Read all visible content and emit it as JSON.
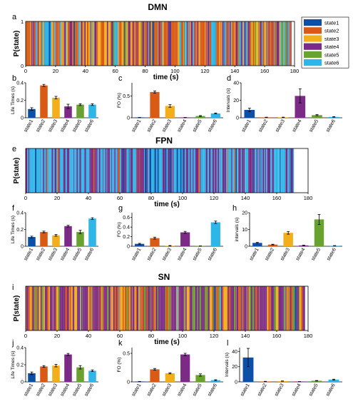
{
  "colors": {
    "state1": "#0b4fa6",
    "state2": "#d95a14",
    "state3": "#f3ae1b",
    "state4": "#7b2a86",
    "state5": "#6aa22f",
    "state6": "#2fb6e8"
  },
  "legend": {
    "placement": "top-right",
    "entries": [
      "state1",
      "state2",
      "state3",
      "state4",
      "state5",
      "state6"
    ]
  },
  "chart_data": [
    {
      "id": "a",
      "type": "timeline",
      "panel_label": "a",
      "title": "DMN",
      "xlabel": "time (s)",
      "ylabel": "P(state)",
      "xlim": [
        0,
        180
      ],
      "ylim": [
        0,
        1
      ],
      "x_ticks": [
        0,
        20,
        40,
        60,
        80,
        100,
        120,
        140,
        160,
        180
      ],
      "y_ticks": [
        0,
        1
      ],
      "data_end": 178,
      "weights": [
        0.02,
        0.36,
        0.22,
        0.2,
        0.08,
        0.12
      ],
      "segments": [
        {
          "start": 12.5,
          "end": 15.5,
          "state": "state6"
        },
        {
          "start": 15.5,
          "end": 16.5,
          "state": "state1"
        },
        {
          "start": 125.5,
          "end": 127.0,
          "state": "state6"
        }
      ]
    },
    {
      "id": "b",
      "type": "bar",
      "panel_label": "b",
      "ylabel": "Life Times (s)",
      "categories": [
        "state1",
        "state2",
        "state3",
        "state4",
        "state5",
        "state6"
      ],
      "values": [
        0.1,
        0.37,
        0.23,
        0.13,
        0.15,
        0.15
      ],
      "errors": [
        0.015,
        0.012,
        0.015,
        0.025,
        0.01,
        0.01
      ],
      "ylim": [
        0,
        0.4
      ],
      "y_ticks": [
        0,
        0.2,
        0.4
      ]
    },
    {
      "id": "c",
      "type": "bar",
      "panel_label": "c",
      "ylabel": "FO (%)",
      "categories": [
        "state1",
        "state2",
        "state3",
        "state4",
        "state5",
        "state6"
      ],
      "values": [
        0.005,
        0.59,
        0.27,
        0.005,
        0.04,
        0.1
      ],
      "errors": [
        0.003,
        0.025,
        0.03,
        0.003,
        0.01,
        0.01
      ],
      "ylim": [
        0,
        0.8
      ],
      "y_ticks": [
        0,
        0.5
      ]
    },
    {
      "id": "d",
      "type": "bar",
      "panel_label": "d",
      "ylabel": "Intervals (s)",
      "categories": [
        "state1",
        "state2",
        "state3",
        "state4",
        "state5",
        "state6"
      ],
      "values": [
        9,
        0.5,
        0.5,
        25,
        3,
        1
      ],
      "errors": [
        2,
        0.2,
        0.2,
        8,
        0.6,
        0.3
      ],
      "ylim": [
        0,
        40
      ],
      "y_ticks": [
        0,
        20,
        40
      ]
    },
    {
      "id": "e",
      "type": "timeline",
      "panel_label": "e",
      "title": "FPN",
      "xlabel": "time (s)",
      "ylabel": "P(state)",
      "xlim": [
        0,
        180
      ],
      "ylim": [
        0,
        1
      ],
      "x_ticks": [
        0,
        20,
        40,
        60,
        80,
        100,
        120,
        140,
        160,
        180
      ],
      "y_ticks": [],
      "data_end": 171,
      "weights": [
        0.05,
        0.05,
        0.0,
        0.35,
        0.0,
        0.55
      ],
      "segments": []
    },
    {
      "id": "f",
      "type": "bar",
      "panel_label": "f",
      "ylabel": "Life Times (s)",
      "categories": [
        "state1",
        "state2",
        "state3",
        "state4",
        "state5",
        "state6"
      ],
      "values": [
        0.11,
        0.17,
        0.13,
        0.24,
        0.17,
        0.33
      ],
      "errors": [
        0.01,
        0.01,
        0.01,
        0.01,
        0.02,
        0.01
      ],
      "ylim": [
        0,
        0.4
      ],
      "y_ticks": [
        0,
        0.2,
        0.4
      ]
    },
    {
      "id": "g",
      "type": "bar",
      "panel_label": "g",
      "ylabel": "FO (%)",
      "categories": [
        "state1",
        "state2",
        "state3",
        "state4",
        "state5",
        "state6"
      ],
      "values": [
        0.05,
        0.17,
        0.01,
        0.29,
        0.005,
        0.5
      ],
      "errors": [
        0.01,
        0.02,
        0.005,
        0.02,
        0.003,
        0.025
      ],
      "ylim": [
        0,
        0.7
      ],
      "y_ticks": [
        0,
        0.2,
        0.4,
        0.6
      ]
    },
    {
      "id": "h",
      "type": "bar",
      "panel_label": "h",
      "ylabel": "intervals (s)",
      "categories": [
        "state1",
        "state2",
        "state3",
        "state4",
        "state5",
        "state6"
      ],
      "values": [
        2,
        1,
        8,
        0.5,
        16,
        0.3
      ],
      "errors": [
        0.3,
        0.2,
        0.8,
        0.2,
        3,
        0.1
      ],
      "ylim": [
        0,
        20
      ],
      "y_ticks": [
        0,
        10,
        20
      ]
    },
    {
      "id": "i",
      "type": "timeline",
      "panel_label": "i",
      "title": "SN",
      "xlabel": "time (s)",
      "ylabel": "P(state)",
      "xlim": [
        0,
        180
      ],
      "ylim": [
        0,
        1
      ],
      "x_ticks": [
        0,
        20,
        40,
        60,
        80,
        100,
        120,
        140,
        160,
        180
      ],
      "y_ticks": [],
      "data_end": 178,
      "weights": [
        0.01,
        0.18,
        0.14,
        0.47,
        0.14,
        0.06
      ],
      "segments": []
    },
    {
      "id": "j",
      "type": "bar",
      "panel_label": "j",
      "ylabel": "Life Times (s)",
      "categories": [
        "state1",
        "state2",
        "state3",
        "state4",
        "state5",
        "state6"
      ],
      "values": [
        0.1,
        0.18,
        0.19,
        0.32,
        0.17,
        0.13
      ],
      "errors": [
        0.015,
        0.01,
        0.015,
        0.012,
        0.02,
        0.01
      ],
      "ylim": [
        0,
        0.4
      ],
      "y_ticks": [
        0,
        0.2,
        0.4
      ]
    },
    {
      "id": "k",
      "type": "bar",
      "panel_label": "k",
      "ylabel": "FO (%)",
      "categories": [
        "state1",
        "state2",
        "state3",
        "state4",
        "state5",
        "state6"
      ],
      "values": [
        0.005,
        0.22,
        0.15,
        0.48,
        0.12,
        0.03
      ],
      "errors": [
        0.003,
        0.015,
        0.01,
        0.02,
        0.02,
        0.008
      ],
      "ylim": [
        0,
        0.6
      ],
      "y_ticks": [
        0,
        0.5
      ]
    },
    {
      "id": "l",
      "type": "bar",
      "panel_label": "l",
      "ylabel": "Intervals (s)",
      "categories": [
        "state1",
        "state2",
        "state3",
        "state4",
        "state5",
        "state6"
      ],
      "values": [
        32,
        0.5,
        1,
        0.3,
        1.5,
        3
      ],
      "errors": [
        12,
        0.2,
        0.2,
        0.1,
        0.3,
        0.5
      ],
      "ylim": [
        0,
        45
      ],
      "y_ticks": [
        0,
        20,
        40
      ]
    }
  ]
}
